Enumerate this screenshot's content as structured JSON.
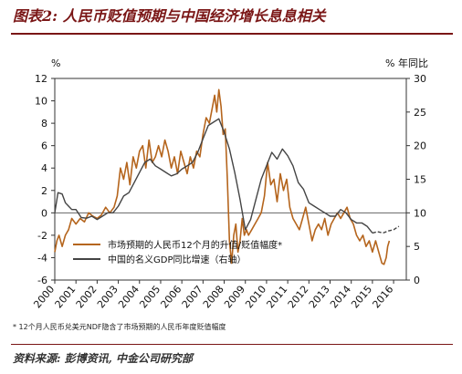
{
  "title": "图表2: 人民币贬值预期与中国经济增长息息相关",
  "note": "* 12个月人民币兑美元NDF隐含了市场预期的人民币年度贬值幅度",
  "source": "资料来源: 彭博资讯, 中金公司研究部",
  "chart_data": {
    "type": "line",
    "left_unit": "%",
    "right_unit": "% 年同比",
    "left_ylim": [
      -6,
      12
    ],
    "left_yticks": [
      -6,
      -4,
      -2,
      0,
      2,
      4,
      6,
      8,
      10,
      12
    ],
    "right_ylim": [
      0,
      30
    ],
    "right_yticks": [
      0,
      5,
      10,
      15,
      20,
      25,
      30
    ],
    "xlim": [
      2000,
      2016.6
    ],
    "xticks": [
      "2000",
      "2001",
      "2002",
      "2003",
      "2004",
      "2005",
      "2006",
      "2007",
      "2008",
      "2009",
      "2010",
      "2011",
      "2012",
      "2013",
      "2014",
      "2015",
      "2016"
    ],
    "legend_position": "bottom-left",
    "series": [
      {
        "name": "市场预期的人民币12个月的升值/贬值幅度*",
        "axis": "left",
        "color": "#b5651d",
        "x": [
          2000.0,
          2000.1,
          2000.2,
          2000.35,
          2000.5,
          2000.65,
          2000.8,
          2001.0,
          2001.2,
          2001.4,
          2001.6,
          2001.8,
          2002.0,
          2002.2,
          2002.4,
          2002.6,
          2002.8,
          2002.95,
          2003.1,
          2003.25,
          2003.4,
          2003.55,
          2003.7,
          2003.85,
          2004.0,
          2004.15,
          2004.3,
          2004.45,
          2004.6,
          2004.75,
          2004.9,
          2005.05,
          2005.2,
          2005.35,
          2005.5,
          2005.65,
          2005.8,
          2005.95,
          2006.1,
          2006.25,
          2006.4,
          2006.55,
          2006.7,
          2006.85,
          2007.0,
          2007.15,
          2007.3,
          2007.45,
          2007.55,
          2007.65,
          2007.75,
          2007.85,
          2007.95,
          2008.05,
          2008.15,
          2008.25,
          2008.35,
          2008.45,
          2008.55,
          2008.65,
          2008.75,
          2008.85,
          2008.95,
          2009.05,
          2009.15,
          2009.3,
          2009.45,
          2009.6,
          2009.75,
          2009.9,
          2010.05,
          2010.2,
          2010.35,
          2010.5,
          2010.65,
          2010.8,
          2010.95,
          2011.1,
          2011.25,
          2011.4,
          2011.55,
          2011.7,
          2011.85,
          2012.0,
          2012.15,
          2012.3,
          2012.45,
          2012.6,
          2012.75,
          2012.9,
          2013.05,
          2013.2,
          2013.35,
          2013.5,
          2013.65,
          2013.8,
          2013.95,
          2014.1,
          2014.25,
          2014.4,
          2014.55,
          2014.7,
          2014.85,
          2015.0,
          2015.15,
          2015.3,
          2015.45,
          2015.55,
          2015.65,
          2015.72,
          2015.8
        ],
        "y": [
          -3.5,
          -2.5,
          -2.0,
          -3.0,
          -2.0,
          -1.5,
          -0.5,
          -1.0,
          -0.5,
          -0.8,
          0.0,
          -0.3,
          -0.5,
          -0.2,
          0.5,
          0.0,
          0.5,
          1.5,
          4.0,
          3.0,
          4.5,
          2.5,
          5.0,
          4.0,
          5.5,
          6.0,
          4.0,
          6.5,
          4.5,
          5.0,
          6.0,
          5.0,
          6.5,
          5.5,
          4.0,
          5.0,
          3.5,
          5.5,
          4.5,
          3.5,
          5.0,
          4.0,
          5.5,
          5.0,
          7.0,
          8.5,
          8.0,
          9.5,
          10.5,
          9.0,
          11.0,
          9.5,
          7.0,
          7.5,
          3.0,
          -2.5,
          -4.5,
          -2.0,
          -1.0,
          -3.5,
          -2.5,
          -0.5,
          -2.0,
          -1.5,
          -2.0,
          -1.5,
          -1.0,
          -0.5,
          0.0,
          1.5,
          4.5,
          2.5,
          3.0,
          1.0,
          3.5,
          2.0,
          3.0,
          0.5,
          -0.5,
          -1.0,
          -1.5,
          -0.5,
          0.5,
          -1.0,
          -2.5,
          -1.5,
          -1.0,
          -1.5,
          -0.5,
          -2.0,
          -1.0,
          -0.5,
          0.0,
          -0.5,
          0.0,
          0.5,
          -0.5,
          -1.0,
          -2.0,
          -2.5,
          -2.0,
          -3.0,
          -2.5,
          -3.5,
          -2.5,
          -3.5,
          -4.5,
          -4.6,
          -4.0,
          -3.0,
          -2.5
        ]
      },
      {
        "name": "中国的名义GDP同比增速（右轴）",
        "axis": "right",
        "color": "#444444",
        "x": [
          2000.0,
          2000.15,
          2000.35,
          2000.5,
          2000.65,
          2000.8,
          2001.0,
          2001.25,
          2001.5,
          2001.75,
          2002.0,
          2002.25,
          2002.5,
          2002.75,
          2003.0,
          2003.25,
          2003.5,
          2003.75,
          2004.0,
          2004.25,
          2004.5,
          2004.75,
          2005.0,
          2005.25,
          2005.5,
          2005.75,
          2006.0,
          2006.25,
          2006.5,
          2006.75,
          2007.0,
          2007.25,
          2007.5,
          2007.75,
          2008.0,
          2008.25,
          2008.5,
          2008.75,
          2009.0,
          2009.25,
          2009.5,
          2009.75,
          2010.0,
          2010.25,
          2010.5,
          2010.75,
          2011.0,
          2011.25,
          2011.5,
          2011.75,
          2012.0,
          2012.25,
          2012.5,
          2012.75,
          2013.0,
          2013.25,
          2013.5,
          2013.75,
          2014.0,
          2014.25,
          2014.5,
          2014.75,
          2015.0
        ],
        "y": [
          10.0,
          13.0,
          12.8,
          11.5,
          11.0,
          10.5,
          10.5,
          9.3,
          9.2,
          9.5,
          9.0,
          9.5,
          10.0,
          10.0,
          11.0,
          12.5,
          13.0,
          14.5,
          16.0,
          17.5,
          18.0,
          17.0,
          16.5,
          16.0,
          15.5,
          15.8,
          16.5,
          17.0,
          17.5,
          19.0,
          21.0,
          23.0,
          23.5,
          24.0,
          22.0,
          19.5,
          16.0,
          12.0,
          7.5,
          9.0,
          12.0,
          15.0,
          17.0,
          19.0,
          18.0,
          19.5,
          18.5,
          17.0,
          14.5,
          13.5,
          11.5,
          11.0,
          10.5,
          10.0,
          9.5,
          9.5,
          10.5,
          10.0,
          9.0,
          8.5,
          8.5,
          8.0,
          7.0
        ]
      },
      {
        "name": "",
        "axis": "right",
        "color": "#444444",
        "dashed": true,
        "x": [
          2015.0,
          2015.25,
          2015.5,
          2015.75,
          2016.0,
          2016.25
        ],
        "y": [
          7.0,
          7.2,
          7.0,
          7.3,
          7.5,
          8.0
        ]
      }
    ]
  }
}
